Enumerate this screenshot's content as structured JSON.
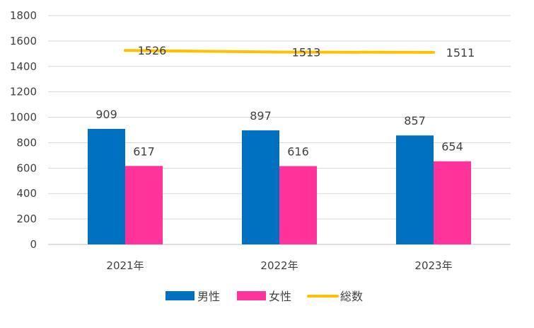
{
  "chart_data": {
    "type": "bar",
    "categories": [
      "2021年",
      "2022年",
      "2023年"
    ],
    "series": [
      {
        "name": "男性",
        "kind": "bar",
        "color": "#0070C0",
        "values": [
          909,
          897,
          857
        ]
      },
      {
        "name": "女性",
        "kind": "bar",
        "color": "#FF3399",
        "values": [
          617,
          616,
          654
        ]
      },
      {
        "name": "総数",
        "kind": "line",
        "color": "#FFC000",
        "values": [
          1526,
          1513,
          1511
        ]
      }
    ],
    "ylim": [
      0,
      1800
    ],
    "yticks": [
      0,
      200,
      400,
      600,
      800,
      1000,
      1200,
      1400,
      1600,
      1800
    ],
    "grid": true,
    "legend_position": "bottom",
    "title": "",
    "xlabel": "",
    "ylabel": ""
  }
}
